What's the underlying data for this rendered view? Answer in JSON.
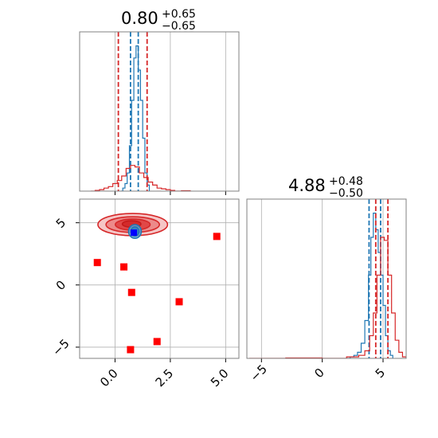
{
  "chart_data": [
    {
      "type": "histogram",
      "panel": "top-left marginal (parameter 1)",
      "title_value": "0.80",
      "title_plus": "+0.65",
      "title_minus": "−0.65",
      "xlim": [
        -1.6,
        5.6
      ],
      "xticks": [
        0.0,
        2.5,
        5.0
      ],
      "grid": true,
      "series": [
        {
          "color": "#1f77b4",
          "style": "step",
          "bins": [
            [
              0.25,
              0.0
            ],
            [
              0.35,
              0.02
            ],
            [
              0.45,
              0.05
            ],
            [
              0.55,
              0.12
            ],
            [
              0.65,
              0.3
            ],
            [
              0.75,
              0.6
            ],
            [
              0.85,
              0.88
            ],
            [
              0.95,
              0.96
            ],
            [
              1.05,
              0.8
            ],
            [
              1.15,
              0.6
            ],
            [
              1.25,
              0.35
            ],
            [
              1.35,
              0.12
            ],
            [
              1.45,
              0.04
            ],
            [
              1.55,
              0.0
            ]
          ],
          "quantile_lines": [
            0.7,
            1.05
          ]
        },
        {
          "color": "#d62728",
          "style": "step",
          "bins": [
            [
              -1.1,
              0.0
            ],
            [
              -0.9,
              0.005
            ],
            [
              -0.7,
              0.01
            ],
            [
              -0.5,
              0.02
            ],
            [
              -0.3,
              0.03
            ],
            [
              -0.1,
              0.05
            ],
            [
              0.1,
              0.07
            ],
            [
              0.3,
              0.1
            ],
            [
              0.5,
              0.15
            ],
            [
              0.7,
              0.17
            ],
            [
              0.9,
              0.16
            ],
            [
              1.1,
              0.12
            ],
            [
              1.3,
              0.09
            ],
            [
              1.5,
              0.06
            ],
            [
              1.7,
              0.04
            ],
            [
              1.9,
              0.02
            ],
            [
              2.1,
              0.015
            ],
            [
              2.3,
              0.01
            ],
            [
              2.5,
              0.005
            ],
            [
              2.7,
              0.0
            ],
            [
              3.0,
              0.003
            ],
            [
              3.4,
              0.0
            ]
          ],
          "quantile_lines": [
            0.15,
            1.45
          ]
        }
      ]
    },
    {
      "type": "scatter",
      "panel": "bottom-left 2D (parameter 1 vs parameter 2)",
      "xlim": [
        -1.6,
        5.6
      ],
      "ylim": [
        -5.9,
        6.9
      ],
      "xticks": [
        0.0,
        2.5,
        5.0
      ],
      "xtick_labels": [
        "0.0",
        "2.5",
        "5.0"
      ],
      "yticks": [
        -5,
        0,
        5
      ],
      "ytick_labels": [
        "−5",
        "0",
        "5"
      ],
      "grid": true,
      "red_contours": [
        {
          "cx": 0.8,
          "cy": 4.85,
          "rx": 3.0,
          "ry": 1.7,
          "fill": "#f5c6c6",
          "stroke": "#d62728"
        },
        {
          "cx": 0.8,
          "cy": 4.85,
          "rx": 2.3,
          "ry": 1.2,
          "fill": "#ec8a8a",
          "stroke": "#d62728"
        },
        {
          "cx": 0.8,
          "cy": 4.85,
          "rx": 1.5,
          "ry": 0.85,
          "fill": "#e04848",
          "stroke": "#d62728"
        },
        {
          "cx": 0.75,
          "cy": 4.9,
          "rx": 0.8,
          "ry": 0.5,
          "fill": "#d42a2a",
          "stroke": "#c41a1a"
        }
      ],
      "blue_contours": [
        {
          "cx": 0.9,
          "cy": 4.3,
          "rx": 0.55,
          "ry": 1.05,
          "fill": "#5fa0d0",
          "stroke": "#1f77b4"
        },
        {
          "cx": 0.9,
          "cy": 4.3,
          "rx": 0.35,
          "ry": 0.7,
          "fill": "#2f82c2",
          "stroke": "#1f77b4"
        }
      ],
      "true_point": {
        "x": 0.85,
        "y": 4.2,
        "color": "#0000ff"
      },
      "red_points": [
        {
          "x": -0.8,
          "y": 1.8
        },
        {
          "x": 0.4,
          "y": 1.45
        },
        {
          "x": 0.75,
          "y": -0.6
        },
        {
          "x": 2.9,
          "y": -1.35
        },
        {
          "x": 4.6,
          "y": 3.9
        },
        {
          "x": 1.9,
          "y": -4.55
        },
        {
          "x": 0.7,
          "y": -5.2
        }
      ]
    },
    {
      "type": "histogram",
      "panel": "bottom-right marginal (parameter 2)",
      "title_value": "4.88",
      "title_plus": "+0.48",
      "title_minus": "−0.50",
      "xlim": [
        -6.2,
        6.9
      ],
      "xticks": [
        -5,
        0,
        5
      ],
      "xtick_labels": [
        "−5",
        "0",
        "5"
      ],
      "grid": true,
      "series": [
        {
          "color": "#1f77b4",
          "style": "step",
          "bins": [
            [
              2.0,
              0.0
            ],
            [
              2.3,
              0.01
            ],
            [
              2.6,
              0.02
            ],
            [
              2.9,
              0.04
            ],
            [
              3.2,
              0.1
            ],
            [
              3.5,
              0.25
            ],
            [
              3.8,
              0.55
            ],
            [
              4.0,
              0.8
            ],
            [
              4.2,
              0.96
            ],
            [
              4.4,
              0.85
            ],
            [
              4.6,
              0.7
            ],
            [
              4.8,
              0.55
            ],
            [
              5.0,
              0.35
            ],
            [
              5.2,
              0.15
            ],
            [
              5.4,
              0.05
            ],
            [
              5.6,
              0.02
            ],
            [
              5.8,
              0.0
            ]
          ],
          "quantile_lines": [
            3.85,
            4.8
          ]
        },
        {
          "color": "#d62728",
          "style": "step",
          "bins": [
            [
              -6.0,
              0.0
            ],
            [
              -3.0,
              0.003
            ],
            [
              0.0,
              0.0
            ],
            [
              2.0,
              0.01
            ],
            [
              3.0,
              0.02
            ],
            [
              3.5,
              0.05
            ],
            [
              3.9,
              0.15
            ],
            [
              4.2,
              0.3
            ],
            [
              4.5,
              0.55
            ],
            [
              4.8,
              0.8
            ],
            [
              5.1,
              0.78
            ],
            [
              5.4,
              0.55
            ],
            [
              5.7,
              0.3
            ],
            [
              6.0,
              0.12
            ],
            [
              6.3,
              0.04
            ],
            [
              6.6,
              0.01
            ],
            [
              6.9,
              0.0
            ]
          ],
          "quantile_lines": [
            4.4,
            5.4
          ]
        }
      ]
    }
  ]
}
